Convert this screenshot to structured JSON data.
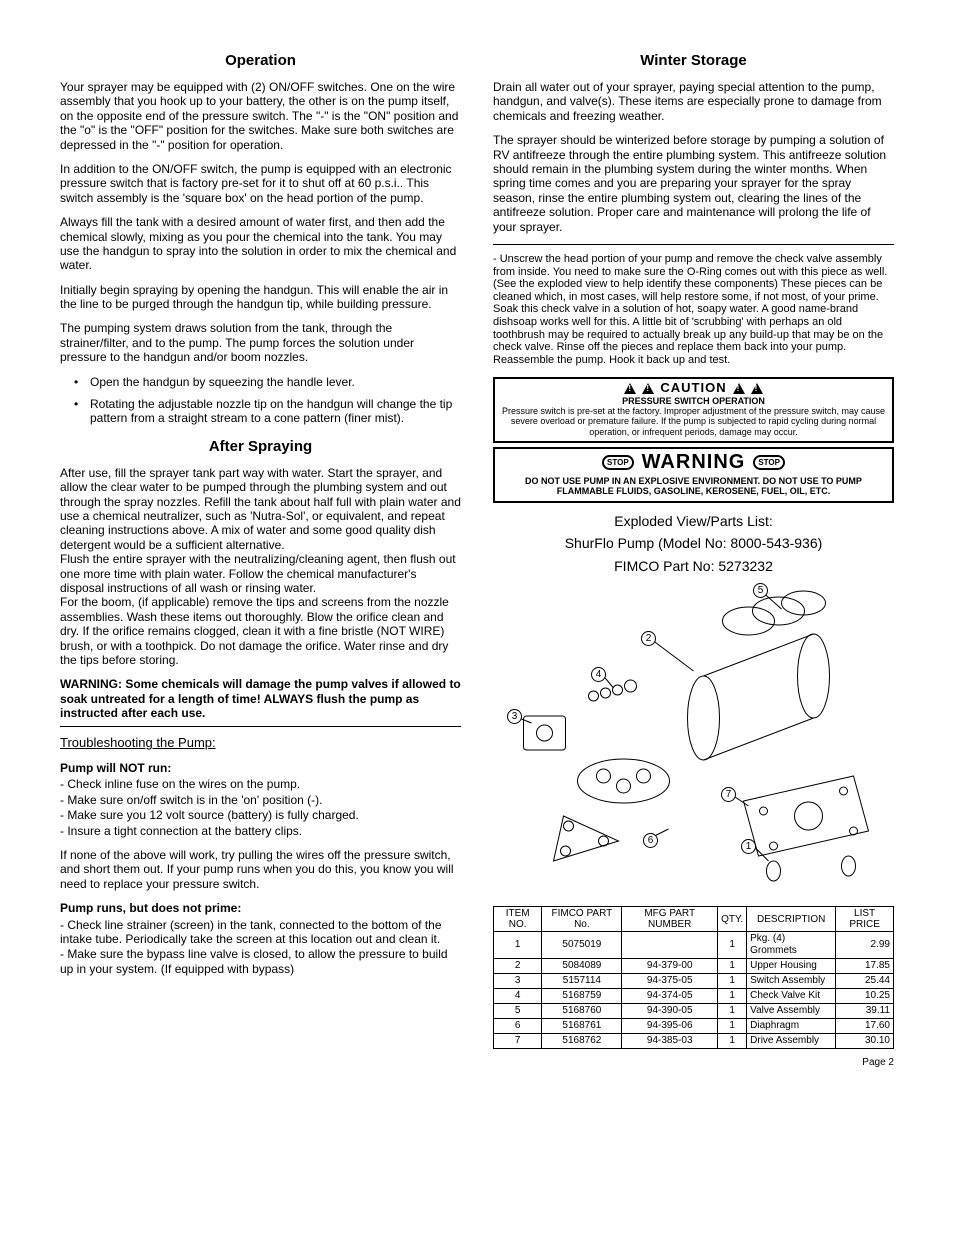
{
  "left": {
    "h_operation": "Operation",
    "op_p1": "Your sprayer may be equipped with (2) ON/OFF switches. One on the wire assembly that you hook up to your battery, the other is on the pump itself, on the opposite end of the pressure switch. The \"-\" is the \"ON\" position and the \"o\" is the \"OFF\" position for the switches. Make sure both switches are depressed in the \"-\" position for operation.",
    "op_p2": "In addition to the ON/OFF switch, the pump is equipped with an electronic pressure switch that is factory pre-set for it to shut off at 60 p.s.i.. This switch assembly is the 'square box' on the head portion of the pump.",
    "op_p3": "Always fill the tank with a desired amount of water first, and then add the chemical slowly, mixing as you pour the chemical into the tank.  You may use the handgun to spray into the solution in order to mix the chemical and water.",
    "op_p4": "Initially begin spraying by opening the handgun. This will enable the air in the line to be purged through the handgun tip, while building pressure.",
    "op_p5": "The pumping system draws solution from the tank, through the strainer/filter, and to the pump. The pump forces the solution under pressure to the handgun and/or boom nozzles.",
    "op_b1": "Open the handgun by squeezing the handle lever.",
    "op_b2": "Rotating the adjustable nozzle tip on the handgun will change the tip pattern from a straight stream to a cone pattern (finer mist).",
    "h_after": "After Spraying",
    "as_p1": "After use, fill the sprayer tank part way with water. Start the sprayer, and allow the clear water to be pumped through the plumbing system and out through the spray nozzles. Refill the tank about half full with plain water and use a chemical neutralizer, such as 'Nutra-Sol', or equivalent, and repeat cleaning instructions above. A mix of water and some good quality dish detergent would be a sufficient alternative.",
    "as_p2": "Flush the entire sprayer with the neutralizing/cleaning agent, then flush out one more time with plain water. Follow the chemical manufacturer's disposal instructions of all wash or rinsing water.",
    "as_p3": "For the boom, (if applicable) remove the tips and screens from the nozzle assemblies. Wash these items out thoroughly. Blow the orifice clean and dry. If the orifice remains clogged, clean it with a fine bristle (NOT WIRE) brush, or with a toothpick. Do not damage the orifice. Water rinse and dry the tips before storing.",
    "as_warn": "WARNING: Some chemicals will damage the pump valves if allowed to soak untreated for a length of time! ALWAYS flush the pump as instructed after each use.",
    "ts_head": "Troubleshooting the Pump:",
    "ts1_head": "Pump will NOT run:",
    "ts1_1": "- Check inline fuse on the wires on the pump.",
    "ts1_2": "- Make sure on/off switch is in the 'on' position (-).",
    "ts1_3": "- Make sure you 12 volt source (battery) is fully charged.",
    "ts1_4": "- Insure a tight connection at the battery clips.",
    "ts1_p": "If none of the above will work, try pulling the wires off the pressure switch, and short them out. If your pump runs when you do this, you know you will need to replace your pressure switch.",
    "ts2_head": "Pump runs, but does not prime:",
    "ts2_1": "- Check line strainer (screen) in the tank, connected to the bottom of the intake tube. Periodically take the screen at this location out and clean it.",
    "ts2_2": "- Make sure the bypass line valve is closed, to allow the pressure to build up in your system. (If equipped with bypass)"
  },
  "right": {
    "h_winter": "Winter Storage",
    "ws_p1": "Drain all water out of your sprayer, paying special attention to the pump, handgun, and valve(s). These items are especially prone to damage from chemicals and freezing weather.",
    "ws_p2": "The sprayer should be winterized before storage by pumping a solution of RV antifreeze through the entire plumbing system. This antifreeze solution should remain in the plumbing system during the winter months. When spring time comes and you are preparing your sprayer for the spray season, rinse the entire plumbing system out, clearing the lines of the antifreeze solution. Proper care and maintenance will prolong the life of your sprayer.",
    "ws_p3": "- Unscrew the head portion of your pump and remove the check valve assembly from inside. You need to make sure the O-Ring comes out with this piece as well. (See the exploded view to help identify these components) These pieces can be cleaned which, in most cases, will help restore some, if not most, of your prime. Soak this check valve in a solution of hot, soapy water. A good name-brand dishsoap works well for this. A little bit of 'scrubbing' with perhaps an old toothbrush may be required to actually break up any build-up that may be on the check valve. Rinse off the pieces and replace them back into your pump. Reassemble the pump. Hook it back up and test.",
    "caution": {
      "title": "CAUTION",
      "sub": "PRESSURE SWITCH OPERATION",
      "body": "Pressure switch is pre-set at the factory. Improper adjustment of the pressure switch, may cause severe overload or premature failure. If the pump is subjected to rapid cycling during normal operation, or infrequent periods, damage may occur."
    },
    "warning": {
      "title": "WARNING",
      "stop": "STOP",
      "body": "DO NOT USE PUMP IN AN EXPLOSIVE ENVIRONMENT. DO NOT USE TO PUMP FLAMMABLE FLUIDS, GASOLINE, KEROSENE, FUEL, OIL, ETC."
    },
    "parts_t1": "Exploded View/Parts List:",
    "parts_t2": "ShurFlo Pump (Model No: 8000-543-936)",
    "parts_t3": "FIMCO Part No: 5273232",
    "table": {
      "headers": [
        "ITEM NO.",
        "FIMCO PART No.",
        "MFG PART NUMBER",
        "QTY.",
        "DESCRIPTION",
        "LIST PRICE"
      ],
      "rows": [
        [
          "1",
          "5075019",
          "",
          "1",
          "Pkg. (4) Grommets",
          "2.99"
        ],
        [
          "2",
          "5084089",
          "94-379-00",
          "1",
          "Upper Housing",
          "17.85"
        ],
        [
          "3",
          "5157114",
          "94-375-05",
          "1",
          "Switch Assembly",
          "25.44"
        ],
        [
          "4",
          "5168759",
          "94-374-05",
          "1",
          "Check Valve Kit",
          "10.25"
        ],
        [
          "5",
          "5168760",
          "94-390-05",
          "1",
          "Valve Assembly",
          "39.11"
        ],
        [
          "6",
          "5168761",
          "94-395-06",
          "1",
          "Diaphragm",
          "17.60"
        ],
        [
          "7",
          "5168762",
          "94-385-03",
          "1",
          "Drive Assembly",
          "30.10"
        ]
      ]
    }
  },
  "page": "Page 2"
}
